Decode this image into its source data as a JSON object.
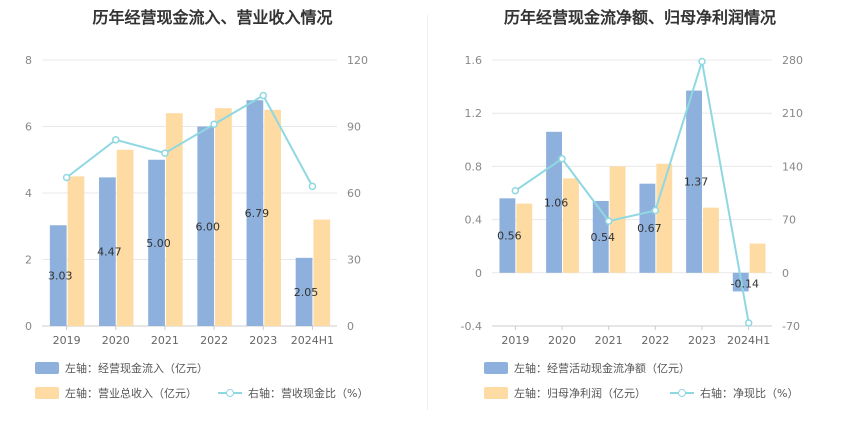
{
  "colors": {
    "bar_primary": "#8eb0dc",
    "bar_secondary": "#fddba2",
    "line": "#8fd8e2",
    "grid": "#e8e8e8"
  },
  "chart_data": [
    {
      "type": "bar",
      "title": "历年经营现金流入、营业收入情况",
      "categories": [
        "2019",
        "2020",
        "2021",
        "2022",
        "2023",
        "2024H1"
      ],
      "left_ticks": [
        "0",
        "2",
        "4",
        "6",
        "8"
      ],
      "right_ticks": [
        "0",
        "30",
        "60",
        "90",
        "120"
      ],
      "ylim_left": [
        0,
        8
      ],
      "ylim_right": [
        0,
        120
      ],
      "series": [
        {
          "name": "左轴：经营现金流入（亿元）",
          "axis": "left",
          "kind": "bar",
          "values": [
            3.03,
            4.47,
            5.0,
            6.0,
            6.79,
            2.05
          ],
          "labels": [
            "3.03",
            "4.47",
            "5.00",
            "6.00",
            "6.79",
            "2.05"
          ]
        },
        {
          "name": "左轴：营业总收入（亿元）",
          "axis": "left",
          "kind": "bar",
          "values": [
            4.5,
            5.3,
            6.4,
            6.55,
            6.5,
            3.2
          ]
        },
        {
          "name": "右轴：营收现金比（%）",
          "axis": "right",
          "kind": "line",
          "values": [
            67,
            84,
            78,
            91,
            104,
            63
          ]
        }
      ],
      "grid": true,
      "legend": "bottom"
    },
    {
      "type": "bar",
      "title": "历年经营现金流净额、归母净利润情况",
      "categories": [
        "2019",
        "2020",
        "2021",
        "2022",
        "2023",
        "2024H1"
      ],
      "left_ticks": [
        "-0.4",
        "0",
        "0.4",
        "0.8",
        "1.2",
        "1.6"
      ],
      "right_ticks": [
        "-70",
        "0",
        "70",
        "140",
        "210",
        "280"
      ],
      "ylim_left": [
        -0.4,
        1.6
      ],
      "ylim_right": [
        -70,
        280
      ],
      "series": [
        {
          "name": "左轴：经营活动现金流净额（亿元）",
          "axis": "left",
          "kind": "bar",
          "values": [
            0.56,
            1.06,
            0.54,
            0.67,
            1.37,
            -0.14
          ],
          "labels": [
            "0.56",
            "1.06",
            "0.54",
            "0.67",
            "1.37",
            "-0.14"
          ]
        },
        {
          "name": "左轴：归母净利润（亿元）",
          "axis": "left",
          "kind": "bar",
          "values": [
            0.52,
            0.71,
            0.8,
            0.82,
            0.49,
            0.22
          ]
        },
        {
          "name": "右轴：净现比（%）",
          "axis": "right",
          "kind": "line",
          "values": [
            108,
            150,
            68,
            82,
            278,
            -66
          ]
        }
      ],
      "grid": true,
      "legend": "bottom"
    }
  ]
}
